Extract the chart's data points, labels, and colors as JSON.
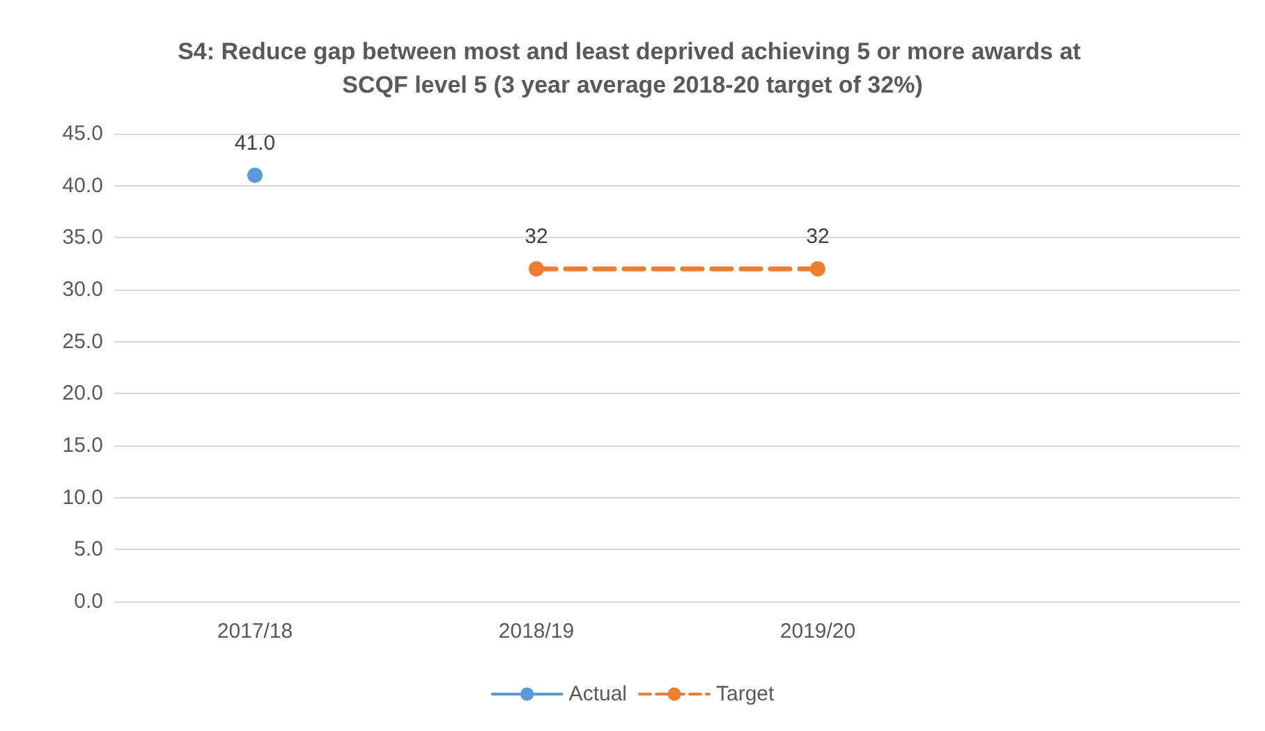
{
  "chart_data": {
    "type": "line",
    "title": "S4: Reduce gap between most and least deprived achieving 5 or more awards at SCQF level 5 (3 year average 2018-20 target of 32%)",
    "categories": [
      "2017/18",
      "2018/19",
      "2019/20",
      null
    ],
    "series": [
      {
        "name": "Actual",
        "color": "#5b9bd5",
        "line_style": "solid",
        "values": [
          41.0,
          null,
          null,
          null
        ],
        "value_labels": [
          "41.0",
          null,
          null,
          null
        ]
      },
      {
        "name": "Target",
        "color": "#ed7d31",
        "line_style": "dashed",
        "values": [
          null,
          32,
          32,
          null
        ],
        "value_labels": [
          null,
          "32",
          "32",
          null
        ]
      }
    ],
    "ylim": [
      0,
      45
    ],
    "yticks": [
      {
        "value": 0,
        "label": "0.0"
      },
      {
        "value": 5,
        "label": "5.0"
      },
      {
        "value": 10,
        "label": "10.0"
      },
      {
        "value": 15,
        "label": "15.0"
      },
      {
        "value": 20,
        "label": "20.0"
      },
      {
        "value": 25,
        "label": "25.0"
      },
      {
        "value": 30,
        "label": "30.0"
      },
      {
        "value": 35,
        "label": "35.0"
      },
      {
        "value": 40,
        "label": "40.0"
      },
      {
        "value": 45,
        "label": "45.0"
      }
    ],
    "grid": "y",
    "legend": "bottom",
    "marker": "circle"
  }
}
